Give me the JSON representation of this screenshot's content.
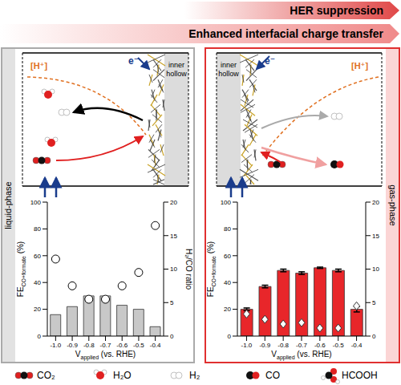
{
  "header": {
    "banners": [
      "HER suppression",
      "Enhanced interfacial charge transfer"
    ]
  },
  "panels": [
    {
      "phase": "liquid-phase",
      "proton": "[H⁺]",
      "hollow": "inner hollow",
      "electron": "e⁻"
    },
    {
      "phase": "gas-phase",
      "proton": "[H⁺]",
      "hollow": "inner hollow",
      "electron": "e⁻"
    }
  ],
  "chart_data": [
    {
      "type": "bar",
      "x_label": [
        "V",
        "applied",
        "(vs. RHE)"
      ],
      "y_label": [
        "FE",
        "CO+formate",
        "(%)"
      ],
      "y2_label": "H₂/CO ratio",
      "categories": [
        "-1.0",
        "-0.9",
        "-0.8",
        "-0.7",
        "-0.6",
        "-0.5",
        "-0.4"
      ],
      "ylim": [
        0,
        100
      ],
      "yticks": [
        0,
        20,
        40,
        60,
        80,
        100
      ],
      "y2lim": [
        0,
        20
      ],
      "y2ticks": [
        0,
        5,
        10,
        15,
        20
      ],
      "series": [
        {
          "type": "bar",
          "color": "#c8c8c8",
          "values": [
            16,
            22,
            30,
            30,
            23,
            20,
            7
          ]
        },
        {
          "type": "scatter",
          "axis": "y2",
          "marker": "circle",
          "color": "#ffffff",
          "values": [
            11.5,
            7.5,
            5.5,
            5.5,
            7.5,
            9.5,
            16.5
          ]
        }
      ]
    },
    {
      "type": "bar",
      "x_label": [
        "V",
        "applied",
        "(vs. RHE)"
      ],
      "y_label": [
        "FE",
        "CO+formate",
        "(%)"
      ],
      "categories": [
        "-1.0",
        "-0.9",
        "-0.8",
        "-0.7",
        "-0.6",
        "-0.5",
        "-0.4"
      ],
      "ylim": [
        0,
        100
      ],
      "yticks": [
        0,
        20,
        40,
        60,
        80,
        100
      ],
      "y2lim": [
        0,
        20
      ],
      "y2ticks": [
        0,
        5,
        10,
        15,
        20
      ],
      "series": [
        {
          "type": "bar",
          "color": "#e8262a",
          "values": [
            20,
            37,
            49,
            47,
            51,
            49,
            20
          ],
          "errors": [
            1,
            1,
            1,
            1,
            0.5,
            1,
            2
          ]
        },
        {
          "type": "scatter",
          "axis": "y2",
          "marker": "diamond",
          "color": "#ffffff",
          "values": [
            3.3,
            2.5,
            1.8,
            2,
            1.2,
            1.2,
            4.5
          ]
        }
      ]
    }
  ],
  "legend_items": [
    "CO₂",
    "H₂O",
    "H₂",
    "CO",
    "HCOOH"
  ]
}
